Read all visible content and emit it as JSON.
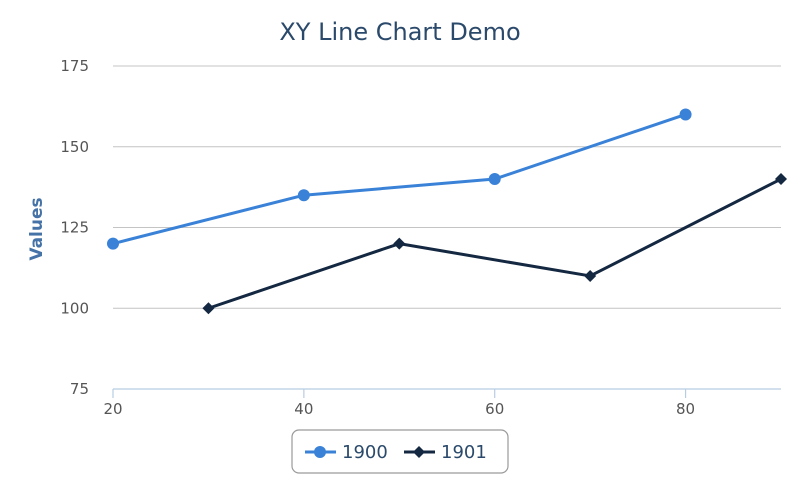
{
  "chart_data": {
    "type": "line",
    "title": "XY Line Chart Demo",
    "xlabel": "",
    "ylabel": "Values",
    "xlim": [
      20,
      90
    ],
    "ylim": [
      75,
      175
    ],
    "x_ticks": [
      "20",
      "40",
      "60",
      "80"
    ],
    "y_ticks": [
      "75",
      "100",
      "125",
      "150",
      "175"
    ],
    "grid": true,
    "legend_position": "bottom-center",
    "series": [
      {
        "name": "1900",
        "color": "#3a82d8",
        "marker": "circle",
        "points": [
          {
            "x": 20,
            "y": 120
          },
          {
            "x": 40,
            "y": 135
          },
          {
            "x": 60,
            "y": 140
          },
          {
            "x": 80,
            "y": 160
          }
        ]
      },
      {
        "name": "1901",
        "color": "#142842",
        "marker": "diamond",
        "points": [
          {
            "x": 30,
            "y": 100
          },
          {
            "x": 50,
            "y": 120
          },
          {
            "x": 70,
            "y": 110
          },
          {
            "x": 90,
            "y": 140
          }
        ]
      }
    ]
  }
}
